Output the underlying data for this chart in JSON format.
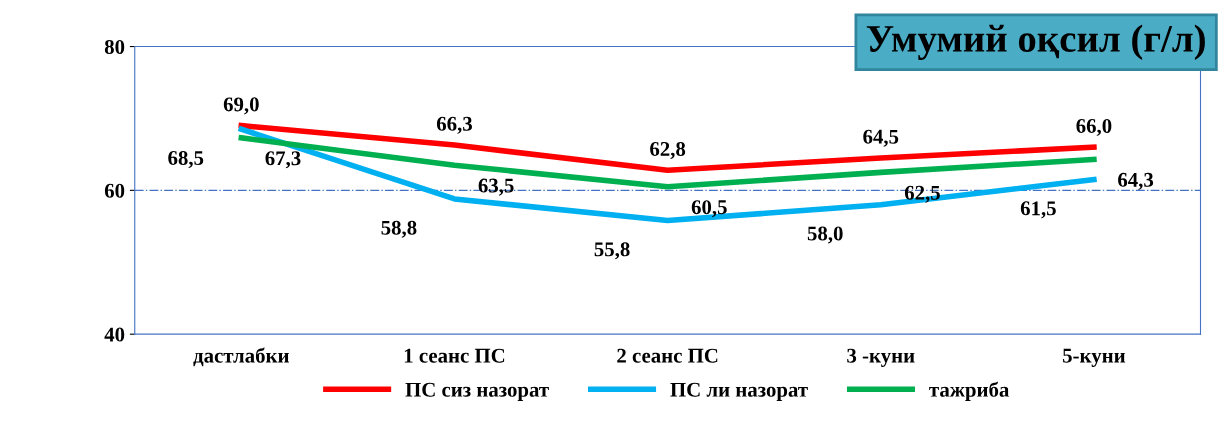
{
  "chart_data": {
    "type": "line",
    "title": "Умумий оқсил (г/л)",
    "categories": [
      "дастлабки",
      "1 сеанс ПС",
      "2 сеанс ПС",
      "3 -куни",
      "5-куни"
    ],
    "series": [
      {
        "name": "ПС сиз назорат",
        "color": "#ff0000",
        "values": [
          69.0,
          66.3,
          62.8,
          64.5,
          66.0
        ],
        "value_labels": [
          "69,0",
          "66,3",
          "62,8",
          "64,5",
          "66,0"
        ]
      },
      {
        "name": "ПС ли назорат",
        "color": "#00b0f0",
        "values": [
          68.5,
          58.8,
          55.8,
          58.0,
          61.5
        ],
        "value_labels": [
          "68,5",
          "58,8",
          "55,8",
          "58,0",
          "61,5"
        ]
      },
      {
        "name": "тажриба",
        "color": "#00b050",
        "values": [
          67.3,
          63.5,
          60.5,
          62.5,
          64.3
        ],
        "value_labels": [
          "67,3",
          "63,5",
          "60,5",
          "62,5",
          "64,3"
        ]
      }
    ],
    "ylim": [
      40,
      80
    ],
    "yticks": [
      40,
      60,
      80
    ],
    "ref_lines": [
      {
        "axis": "y",
        "value": 60,
        "color": "#4472c4",
        "line_style": "dashdot"
      }
    ],
    "legend": "bottom",
    "marker": "none",
    "line_style": "solid"
  }
}
